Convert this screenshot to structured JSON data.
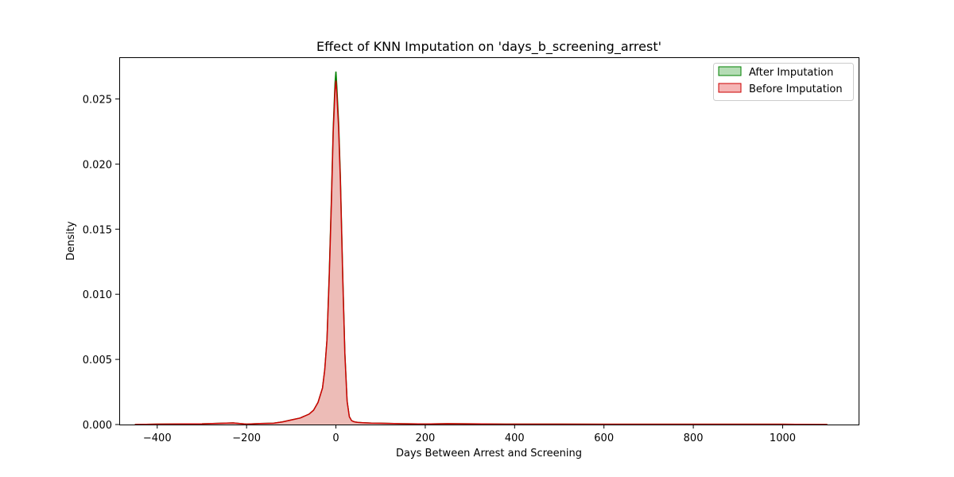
{
  "chart_data": {
    "type": "area",
    "title": "Effect of KNN Imputation on 'days_b_screening_arrest'",
    "xlabel": "Days Between Arrest and Screening",
    "ylabel": "Density",
    "xlim": [
      -485,
      1170
    ],
    "ylim": [
      0,
      0.0282
    ],
    "xticks": [
      -400,
      -200,
      0,
      200,
      400,
      600,
      800,
      1000
    ],
    "xtick_labels": [
      "−400",
      "−200",
      "0",
      "200",
      "400",
      "600",
      "800",
      "1000"
    ],
    "yticks": [
      0.0,
      0.005,
      0.01,
      0.015,
      0.02,
      0.025
    ],
    "ytick_labels": [
      "0.000",
      "0.005",
      "0.010",
      "0.015",
      "0.020",
      "0.025"
    ],
    "grid": false,
    "legend_position": "top-right",
    "series": [
      {
        "name": "After Imputation",
        "color": "#008000",
        "fill": "#b5dcb5",
        "x": [
          -450,
          -400,
          -300,
          -230,
          -200,
          -170,
          -140,
          -120,
          -100,
          -80,
          -60,
          -50,
          -40,
          -30,
          -25,
          -20,
          -15,
          -10,
          -6,
          -2,
          0,
          2,
          6,
          10,
          15,
          20,
          25,
          30,
          35,
          40,
          45,
          50,
          60,
          80,
          100,
          150,
          200,
          250,
          300,
          400,
          500,
          600,
          700,
          800,
          900,
          1000,
          1100
        ],
        "values": [
          0,
          3e-05,
          5e-05,
          0.00012,
          3e-05,
          8e-05,
          0.0001,
          0.0002,
          0.00035,
          0.0005,
          0.0008,
          0.0011,
          0.0017,
          0.0028,
          0.0042,
          0.0065,
          0.0115,
          0.0175,
          0.0228,
          0.0262,
          0.0271,
          0.026,
          0.0232,
          0.019,
          0.0118,
          0.0055,
          0.0018,
          0.0006,
          0.0003,
          0.00022,
          0.00018,
          0.00016,
          0.00014,
          0.00011,
          0.0001,
          6e-05,
          4e-05,
          7e-05,
          5e-05,
          3e-05,
          3e-05,
          2e-05,
          2e-05,
          2e-05,
          2e-05,
          2e-05,
          0
        ]
      },
      {
        "name": "Before Imputation",
        "color": "#cc0000",
        "fill": "#f5b5b5",
        "x": [
          -450,
          -400,
          -300,
          -230,
          -200,
          -170,
          -140,
          -120,
          -100,
          -80,
          -60,
          -50,
          -40,
          -30,
          -25,
          -20,
          -15,
          -10,
          -6,
          -2,
          0,
          2,
          6,
          10,
          15,
          20,
          25,
          30,
          35,
          40,
          45,
          50,
          60,
          80,
          100,
          150,
          200,
          250,
          300,
          400,
          500,
          600,
          700,
          800,
          900,
          1000,
          1100
        ],
        "values": [
          0,
          3e-05,
          5e-05,
          0.00012,
          3e-05,
          8e-05,
          0.0001,
          0.0002,
          0.00035,
          0.0005,
          0.0008,
          0.0011,
          0.0017,
          0.0028,
          0.0042,
          0.0065,
          0.0113,
          0.0172,
          0.0225,
          0.0257,
          0.0264,
          0.0254,
          0.0228,
          0.0187,
          0.0116,
          0.0054,
          0.0018,
          0.0006,
          0.0003,
          0.00022,
          0.00018,
          0.00016,
          0.00014,
          0.00011,
          0.0001,
          6e-05,
          4e-05,
          7e-05,
          5e-05,
          3e-05,
          3e-05,
          2e-05,
          2e-05,
          2e-05,
          2e-05,
          2e-05,
          0
        ]
      }
    ]
  }
}
